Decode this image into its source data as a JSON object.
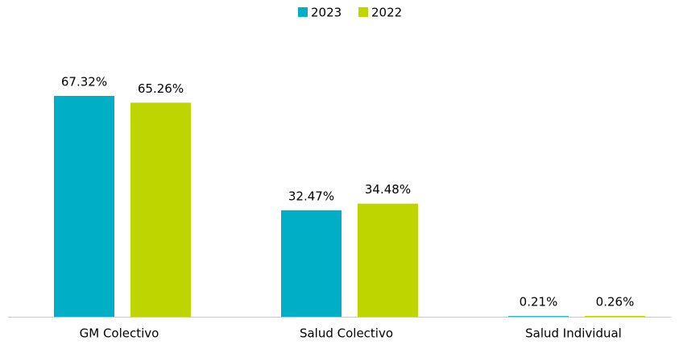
{
  "chart_data": {
    "type": "bar",
    "categories": [
      "GM Colectivo",
      "Salud Colectivo",
      "Salud Individual"
    ],
    "series": [
      {
        "name": "2023",
        "color": "#00afc6",
        "values": [
          67.32,
          32.47,
          0.21
        ],
        "value_labels": [
          "67.32%",
          "32.47%",
          "0.21%"
        ]
      },
      {
        "name": "2022",
        "color": "#bfd500",
        "values": [
          65.26,
          34.48,
          0.26
        ],
        "value_labels": [
          "65.26%",
          "34.48%",
          "0.26%"
        ]
      }
    ],
    "legend": "top"
  }
}
